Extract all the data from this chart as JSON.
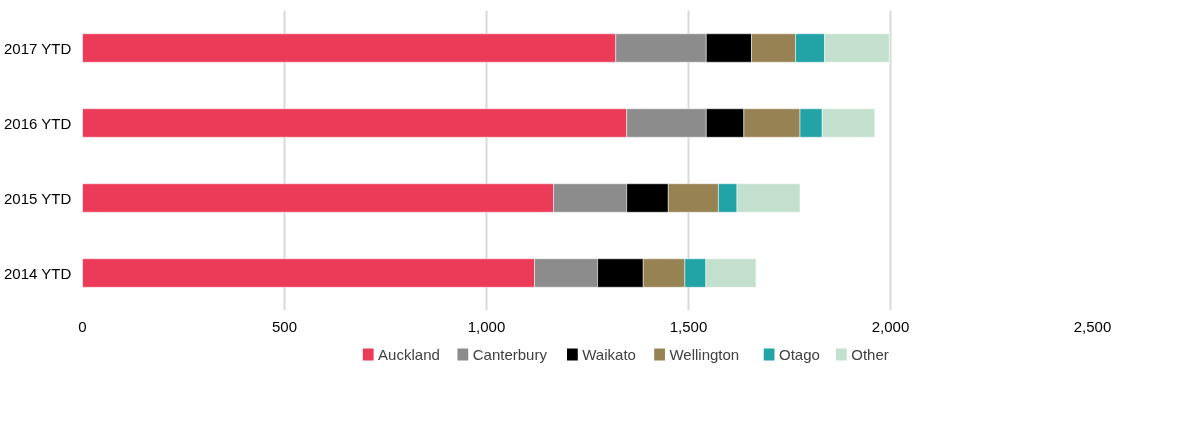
{
  "chart_data": {
    "type": "bar",
    "orientation": "horizontal",
    "stacked": true,
    "categories": [
      "2017 YTD",
      "2016 YTD",
      "2015 YTD",
      "2014 YTD"
    ],
    "series": [
      {
        "name": "Auckland",
        "color": "#ec3b59",
        "values": [
          1320,
          1347,
          1166,
          1119
        ]
      },
      {
        "name": "Canterbury",
        "color": "#8c8c8c",
        "values": [
          224,
          197,
          181,
          156
        ]
      },
      {
        "name": "Waikato",
        "color": "#000000",
        "values": [
          112,
          93,
          103,
          113
        ]
      },
      {
        "name": "Wellington",
        "color": "#978253",
        "values": [
          109,
          139,
          124,
          103
        ]
      },
      {
        "name": "Otago",
        "color": "#22a3a6",
        "values": [
          72,
          55,
          46,
          52
        ]
      },
      {
        "name": "Other",
        "color": "#c3e0cf",
        "values": [
          160,
          130,
          156,
          124
        ]
      }
    ],
    "xlim": [
      0,
      2500
    ],
    "xticks": [
      0,
      {
        "value": 500,
        "label": "500"
      },
      {
        "value": 1000,
        "label": "1,000"
      },
      {
        "value": 1500,
        "label": "1,500"
      },
      {
        "value": 2000,
        "label": "2,000"
      },
      {
        "value": 2500,
        "label": "2,500"
      }
    ],
    "grid": "x",
    "legend": "bottom"
  }
}
